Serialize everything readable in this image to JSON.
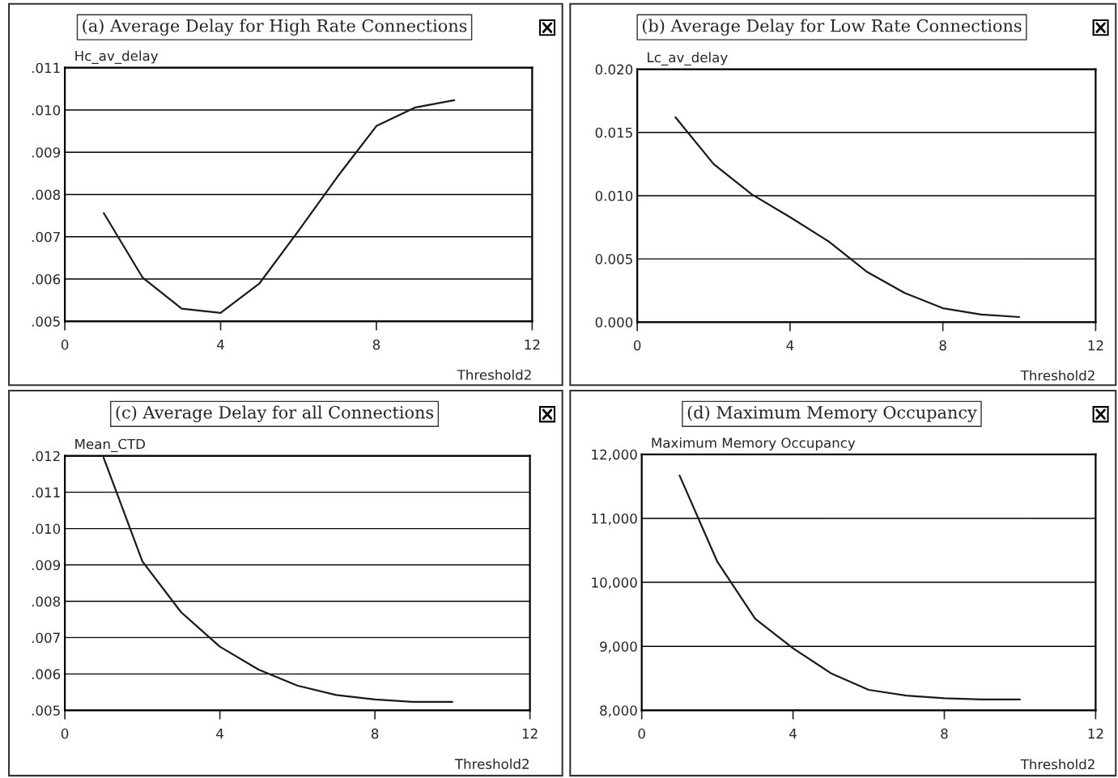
{
  "chart_data": [
    {
      "type": "line",
      "title": "(a) Average Delay for High Rate Connections",
      "ylabel": "Hc_av_delay",
      "xlabel": "Threshold2",
      "x": [
        1,
        2,
        3,
        4,
        5,
        6,
        7,
        8,
        9,
        10
      ],
      "series": [
        {
          "color": "#1a1a1a",
          "values": [
            0.00756,
            0.00603,
            0.0053,
            0.0052,
            0.0059,
            0.00714,
            0.00842,
            0.00962,
            0.01006,
            0.01023
          ]
        }
      ],
      "xlim": [
        0,
        12
      ],
      "xticks": [
        0,
        4,
        8,
        12
      ],
      "ylim": [
        0.005,
        0.011
      ],
      "yticks": [
        {
          "value": 0.005,
          "label": ".005"
        },
        {
          "value": 0.006,
          "label": ".006"
        },
        {
          "value": 0.007,
          "label": ".007"
        },
        {
          "value": 0.008,
          "label": ".008"
        },
        {
          "value": 0.009,
          "label": ".009"
        },
        {
          "value": 0.01,
          "label": ".010"
        },
        {
          "value": 0.011,
          "label": ".011"
        }
      ],
      "grid": "y"
    },
    {
      "type": "line",
      "title": "(b) Average Delay for Low Rate Connections",
      "ylabel": "Lc_av_delay",
      "xlabel": "Threshold2",
      "x": [
        1,
        2,
        3,
        4,
        5,
        6,
        7,
        8,
        9,
        10
      ],
      "series": [
        {
          "color": "#1a1a1a",
          "values": [
            0.0162,
            0.0125,
            0.0101,
            0.0083,
            0.0064,
            0.004,
            0.0023,
            0.0011,
            0.0006,
            0.0004
          ]
        }
      ],
      "xlim": [
        0,
        12
      ],
      "xticks": [
        0,
        4,
        8,
        12
      ],
      "ylim": [
        0,
        0.02
      ],
      "yticks": [
        {
          "value": 0,
          "label": "0.000"
        },
        {
          "value": 0.005,
          "label": "0.005"
        },
        {
          "value": 0.01,
          "label": "0.010"
        },
        {
          "value": 0.015,
          "label": "0.015"
        },
        {
          "value": 0.02,
          "label": "0.020"
        }
      ],
      "grid": "y"
    },
    {
      "type": "line",
      "title": "(c) Average Delay for all Connections",
      "ylabel": "Mean_CTD",
      "xlabel": "Threshold2",
      "x": [
        1,
        2,
        3,
        4,
        5,
        6,
        7,
        8,
        9,
        10
      ],
      "series": [
        {
          "color": "#1a1a1a",
          "values": [
            0.01195,
            0.0091,
            0.0077,
            0.00675,
            0.00612,
            0.00568,
            0.00542,
            0.0053,
            0.00523,
            0.00523
          ]
        }
      ],
      "xlim": [
        0,
        12
      ],
      "xticks": [
        0,
        4,
        8,
        12
      ],
      "ylim": [
        0.005,
        0.012
      ],
      "yticks": [
        {
          "value": 0.005,
          "label": ".005"
        },
        {
          "value": 0.006,
          "label": ".006"
        },
        {
          "value": 0.007,
          "label": ".007"
        },
        {
          "value": 0.008,
          "label": ".008"
        },
        {
          "value": 0.009,
          "label": ".009"
        },
        {
          "value": 0.01,
          "label": ".010"
        },
        {
          "value": 0.011,
          "label": ".011"
        },
        {
          "value": 0.012,
          "label": ".012"
        }
      ],
      "grid": "y"
    },
    {
      "type": "line",
      "title": "(d) Maximum Memory Occupancy",
      "ylabel": "Maximum Memory Occupancy",
      "xlabel": "Threshold2",
      "x": [
        1,
        2,
        3,
        4,
        5,
        6,
        7,
        8,
        9,
        10
      ],
      "series": [
        {
          "color": "#1a1a1a",
          "values": [
            11670,
            10320,
            9430,
            8970,
            8580,
            8320,
            8230,
            8190,
            8170,
            8170
          ]
        }
      ],
      "xlim": [
        0,
        12
      ],
      "xticks": [
        0,
        4,
        8,
        12
      ],
      "ylim": [
        8000,
        12000
      ],
      "yticks": [
        {
          "value": 8000,
          "label": "8,000"
        },
        {
          "value": 9000,
          "label": "9,000"
        },
        {
          "value": 10000,
          "label": "10,000"
        },
        {
          "value": 11000,
          "label": "11,000"
        },
        {
          "value": 12000,
          "label": "12,000"
        }
      ],
      "grid": "y"
    }
  ]
}
